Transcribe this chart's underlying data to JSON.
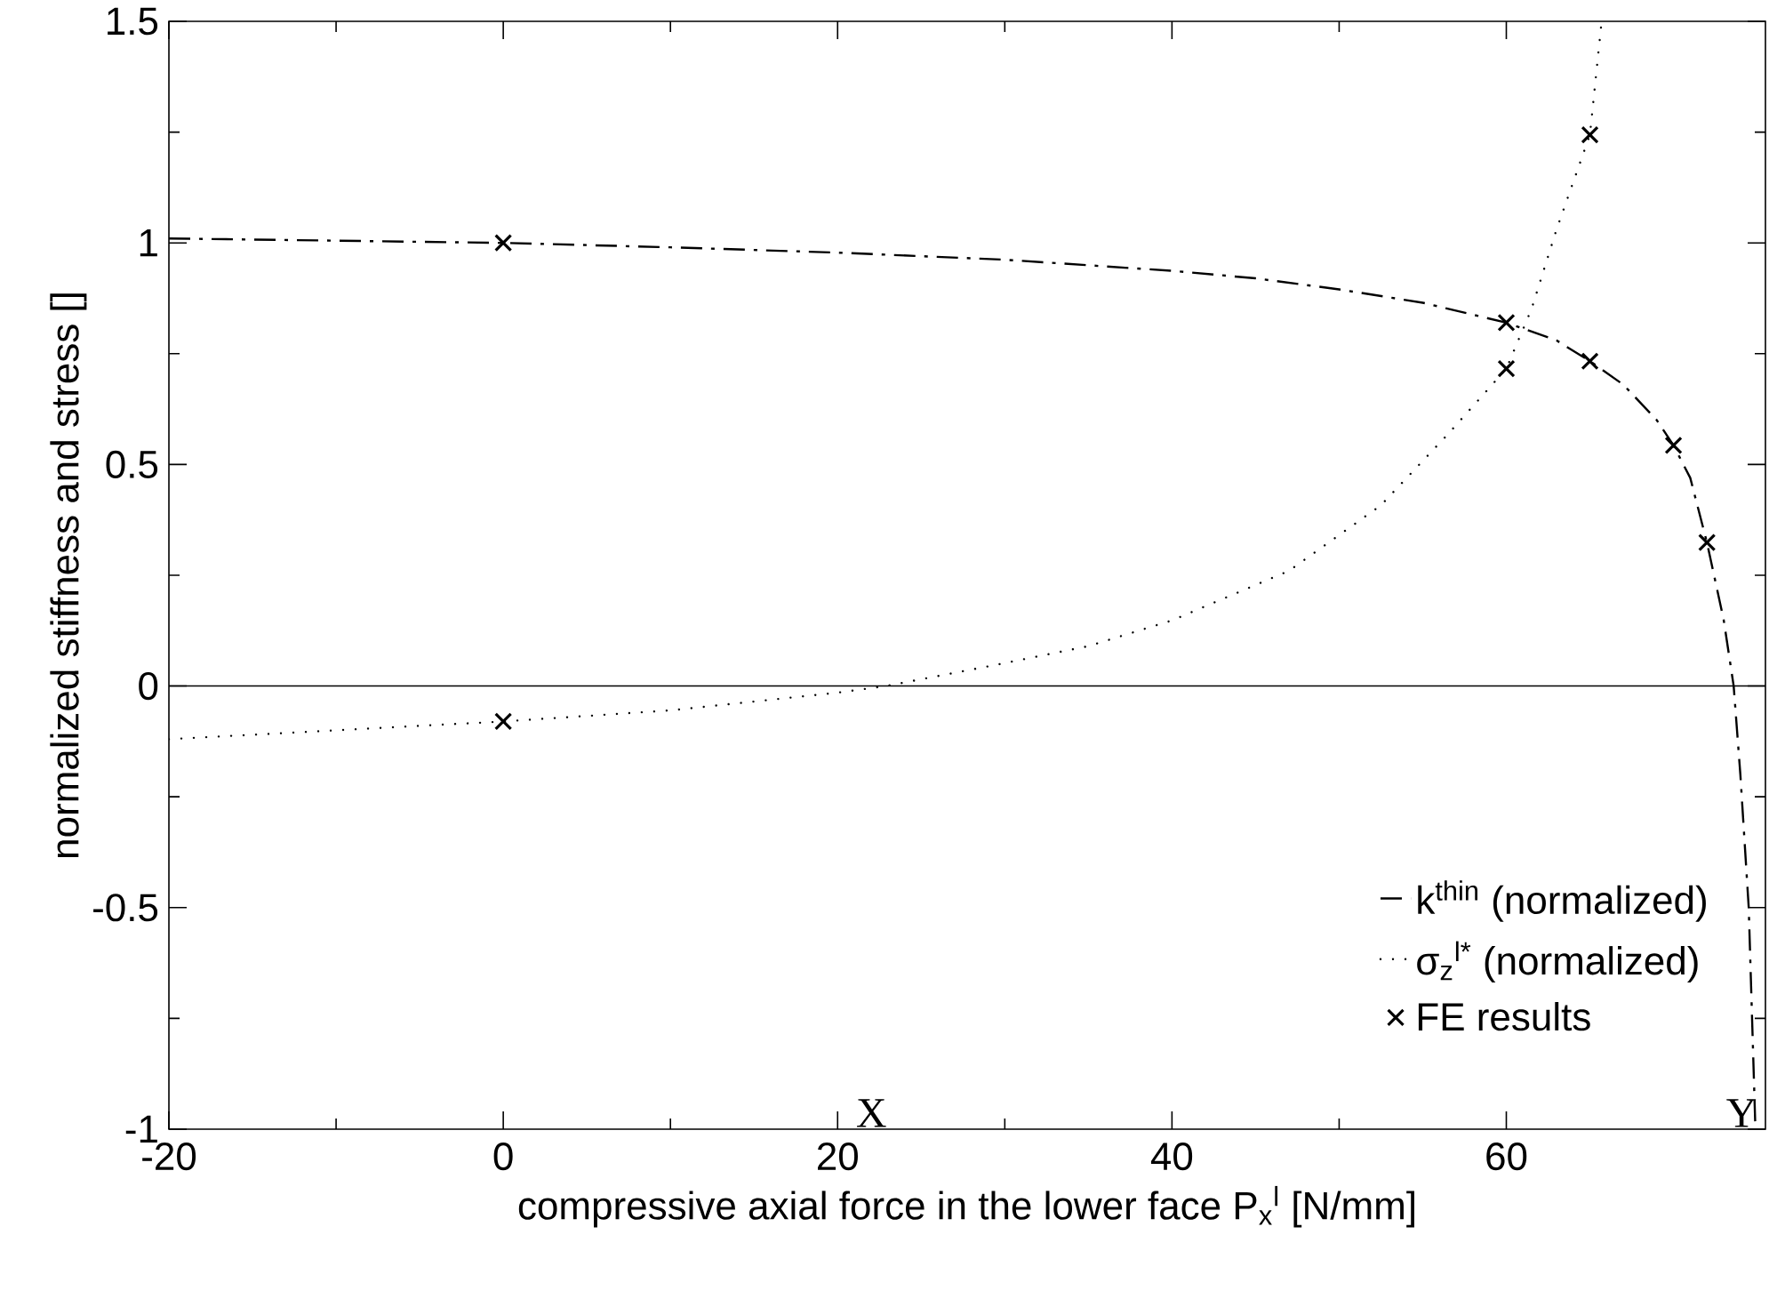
{
  "chart_data": {
    "type": "line",
    "xlabel": "compressive axial force in the lower face P$_{x}$$^{l}$ [N/mm]",
    "ylabel": "normalized stiffness and stress []",
    "xlim": [
      -20,
      75.5
    ],
    "ylim": [
      -1,
      1.5
    ],
    "xticks": [
      -20,
      0,
      20,
      40,
      60
    ],
    "yticks": [
      -1,
      -0.5,
      0,
      0.5,
      1,
      1.5
    ],
    "legend": "bottom right",
    "grid": false,
    "ref_lines": [
      {
        "axis": "y",
        "value": 0,
        "color": "#000000",
        "line_style": "solid"
      }
    ],
    "annotations": [
      "X",
      "Y"
    ],
    "series": [
      {
        "name": "k$^{thin}$ (normalized)",
        "color": "#000000",
        "line_style": "dashdot",
        "marker": "none",
        "x": [
          -20,
          -10,
          0,
          10,
          20,
          30,
          40,
          45,
          50,
          55,
          60,
          63,
          65,
          67,
          69,
          70,
          71,
          72,
          73,
          73.6,
          74,
          74.5,
          74.9
        ],
        "values": [
          1.01,
          1.005,
          1.0,
          0.99,
          0.978,
          0.962,
          0.937,
          0.92,
          0.895,
          0.865,
          0.82,
          0.78,
          0.733,
          0.68,
          0.6,
          0.543,
          0.47,
          0.324,
          0.15,
          0,
          -0.2,
          -0.5,
          -1
        ]
      },
      {
        "name": "σ$_{z}$$^{l*}$ (normalized)",
        "color": "#000000",
        "line_style": "dotted",
        "marker": "none",
        "x": [
          -20,
          -10,
          0,
          10,
          20,
          22.9,
          29.5,
          35,
          40,
          47,
          52.5,
          56.5,
          60,
          61.5,
          63,
          65,
          65.7
        ],
        "values": [
          -0.12,
          -0.1,
          -0.08,
          -0.055,
          -0.015,
          0,
          0.048,
          0.09,
          0.148,
          0.26,
          0.408,
          0.568,
          0.716,
          0.85,
          1.03,
          1.244,
          1.5
        ]
      },
      {
        "name": "FE results",
        "type": "scatter",
        "color": "#000000",
        "marker": "cross",
        "x": [
          0,
          0,
          60,
          60,
          65,
          65,
          70,
          72
        ],
        "values": [
          1.0,
          -0.08,
          0.82,
          0.716,
          1.244,
          0.733,
          0.543,
          0.324
        ]
      }
    ]
  }
}
